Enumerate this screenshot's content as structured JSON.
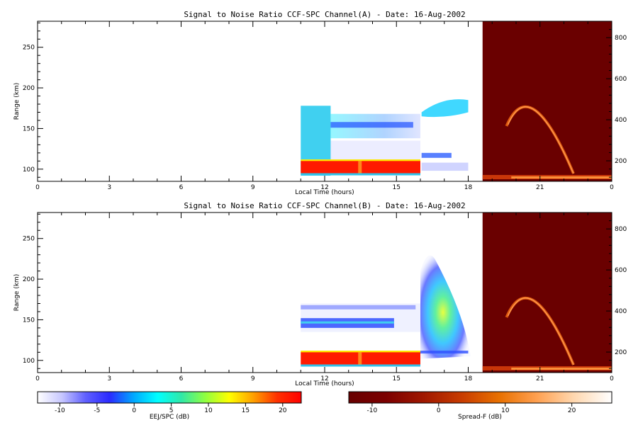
{
  "chart_data": [
    {
      "type": "heatmap",
      "title": "Signal to Noise Ratio CCF-SPC Channel(A) - Date: 16-Aug-2002",
      "xlabel": "Local Time (hours)",
      "ylabel": "Range (km)",
      "x_ticks": [
        "0",
        "3",
        "6",
        "9",
        "12",
        "15",
        "18",
        "21",
        "0"
      ],
      "xlim": [
        0,
        24
      ],
      "y_ticks": [
        100,
        150,
        200,
        250
      ],
      "ylim": [
        85,
        282
      ],
      "right_y_ticks": [
        200,
        400,
        600,
        800
      ],
      "right_ylim": [
        100,
        880
      ],
      "regions": [
        {
          "name": "EEJ/SPC",
          "x_start": 11.0,
          "x_end": 16.0,
          "y_min": 90,
          "y_max": 178,
          "value": -2
        },
        {
          "name": "EEJ/SPC",
          "x_start": 11.0,
          "x_end": 16.0,
          "y_min": 95,
          "y_max": 110,
          "value": 22
        },
        {
          "name": "EEJ/SPC",
          "x_start": 16.0,
          "x_end": 18.0,
          "y_min": 100,
          "y_max": 190,
          "value": -4
        },
        {
          "name": "Spread-F",
          "x_start": 18.6,
          "x_end": 24.0,
          "y_min": 100,
          "y_max": 880,
          "value": -14
        }
      ]
    },
    {
      "type": "heatmap",
      "title": "Signal to Noise Ratio CCF-SPC Channel(B) - Date: 16-Aug-2002",
      "xlabel": "Local Time (hours)",
      "ylabel": "Range (km)",
      "x_ticks": [
        "0",
        "3",
        "6",
        "9",
        "12",
        "15",
        "18",
        "21",
        "0"
      ],
      "xlim": [
        0,
        24
      ],
      "y_ticks": [
        100,
        150,
        200,
        250
      ],
      "ylim": [
        85,
        282
      ],
      "right_y_ticks": [
        200,
        400,
        600,
        800
      ],
      "right_ylim": [
        100,
        880
      ],
      "regions": [
        {
          "name": "EEJ/SPC",
          "x_start": 11.0,
          "x_end": 16.0,
          "y_min": 90,
          "y_max": 178,
          "value": -6
        },
        {
          "name": "EEJ/SPC",
          "x_start": 11.0,
          "x_end": 16.0,
          "y_min": 95,
          "y_max": 110,
          "value": 22
        },
        {
          "name": "EEJ/SPC",
          "x_start": 16.0,
          "x_end": 18.0,
          "y_min": 100,
          "y_max": 238,
          "value": 2
        },
        {
          "name": "Spread-F",
          "x_start": 18.6,
          "x_end": 24.0,
          "y_min": 100,
          "y_max": 880,
          "value": -14
        }
      ]
    }
  ],
  "colorbars": [
    {
      "label": "EEJ/SPC (dB)",
      "ticks": [
        "-10",
        "-5",
        "0",
        "5",
        "10",
        "15",
        "20"
      ],
      "range": [
        -13,
        22.5
      ],
      "colors": [
        "#ffffff",
        "#c8c8ff",
        "#6060ff",
        "#2a2aff",
        "#00a8ff",
        "#00ffff",
        "#30e8a8",
        "#90ff40",
        "#ffff00",
        "#ffa000",
        "#ff3000",
        "#ff0000"
      ]
    },
    {
      "label": "Spread-F (dB)",
      "ticks": [
        "-10",
        "0",
        "10",
        "20"
      ],
      "range": [
        -13.5,
        26
      ],
      "colors": [
        "#680000",
        "#7c0000",
        "#a01800",
        "#c83c00",
        "#e87000",
        "#ffa050",
        "#ffd8b0",
        "#ffffff"
      ]
    }
  ],
  "colors": {
    "spread_f_background": "#6a0000",
    "eej_band": "#ff1a00",
    "eej_band_edge": "#ffe800",
    "cloud_cyan": "#40d0f0",
    "cloud_blue": "#3050ff"
  }
}
